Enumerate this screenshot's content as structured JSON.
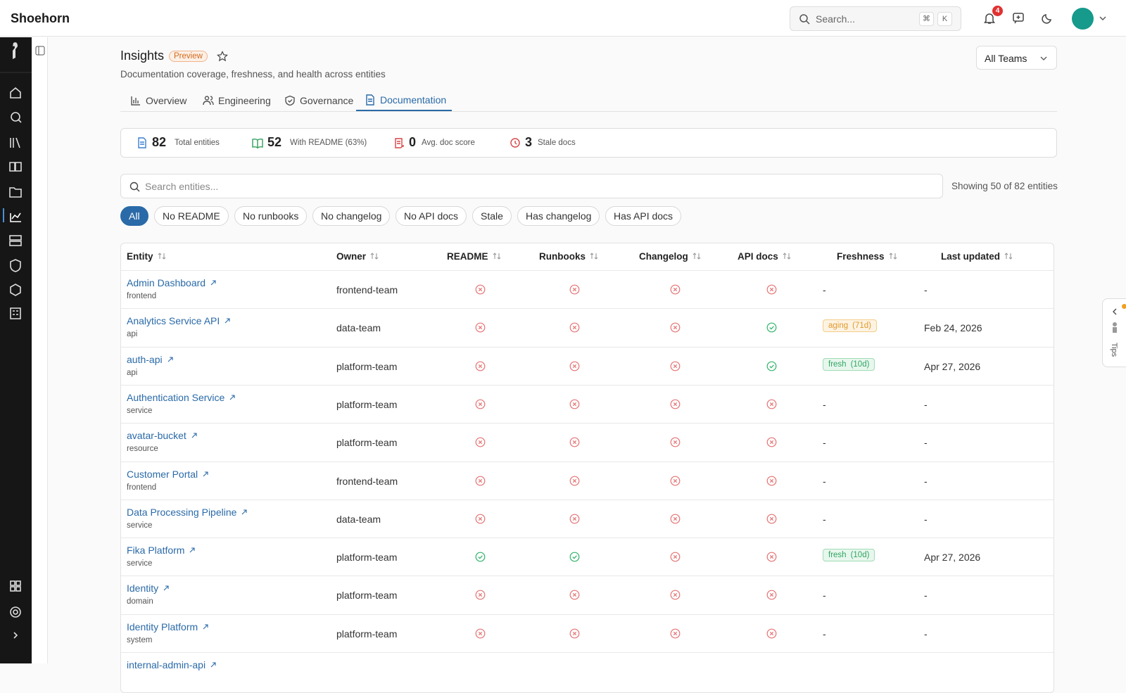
{
  "header": {
    "brand": "Shoehorn",
    "search_placeholder": "Search...",
    "shortcut": [
      "⌘",
      "K"
    ],
    "notification_count": "4"
  },
  "page": {
    "title": "Insights",
    "badge": "Preview",
    "subtitle": "Documentation coverage, freshness, and health across entities",
    "team_select": "All Teams"
  },
  "tabs": [
    {
      "label": "Overview",
      "active": false
    },
    {
      "label": "Engineering",
      "active": false
    },
    {
      "label": "Governance",
      "active": false
    },
    {
      "label": "Documentation",
      "active": true
    }
  ],
  "stats": [
    {
      "value": "82",
      "label": "Total entities"
    },
    {
      "value": "52",
      "label": "With README (63%)"
    },
    {
      "value": "0",
      "label": "Avg. doc score"
    },
    {
      "value": "3",
      "label": "Stale docs"
    }
  ],
  "search": {
    "placeholder": "Search entities...",
    "count_text": "Showing 50 of 82 entities"
  },
  "filters": [
    "All",
    "No README",
    "No runbooks",
    "No changelog",
    "No API docs",
    "Stale",
    "Has changelog",
    "Has API docs"
  ],
  "table": {
    "columns": [
      "Entity",
      "Owner",
      "README",
      "Runbooks",
      "Changelog",
      "API docs",
      "Freshness",
      "Last updated"
    ],
    "rows": [
      {
        "entity": "Admin Dashboard",
        "kind": "frontend",
        "owner": "frontend-team",
        "readme": false,
        "runbooks": false,
        "changelog": false,
        "api_docs": false,
        "freshness": "-",
        "last_updated": "-"
      },
      {
        "entity": "Analytics Service API",
        "kind": "api",
        "owner": "data-team",
        "readme": false,
        "runbooks": false,
        "changelog": false,
        "api_docs": true,
        "freshness": {
          "status": "aging",
          "age": "(71d)"
        },
        "last_updated": "Feb 24, 2026"
      },
      {
        "entity": "auth-api",
        "kind": "api",
        "owner": "platform-team",
        "readme": false,
        "runbooks": false,
        "changelog": false,
        "api_docs": true,
        "freshness": {
          "status": "fresh",
          "age": "(10d)"
        },
        "last_updated": "Apr 27, 2026"
      },
      {
        "entity": "Authentication Service",
        "kind": "service",
        "owner": "platform-team",
        "readme": false,
        "runbooks": false,
        "changelog": false,
        "api_docs": false,
        "freshness": "-",
        "last_updated": "-"
      },
      {
        "entity": "avatar-bucket",
        "kind": "resource",
        "owner": "platform-team",
        "readme": false,
        "runbooks": false,
        "changelog": false,
        "api_docs": false,
        "freshness": "-",
        "last_updated": "-"
      },
      {
        "entity": "Customer Portal",
        "kind": "frontend",
        "owner": "frontend-team",
        "readme": false,
        "runbooks": false,
        "changelog": false,
        "api_docs": false,
        "freshness": "-",
        "last_updated": "-"
      },
      {
        "entity": "Data Processing Pipeline",
        "kind": "service",
        "owner": "data-team",
        "readme": false,
        "runbooks": false,
        "changelog": false,
        "api_docs": false,
        "freshness": "-",
        "last_updated": "-"
      },
      {
        "entity": "Fika Platform",
        "kind": "service",
        "owner": "platform-team",
        "readme": true,
        "runbooks": true,
        "changelog": false,
        "api_docs": false,
        "freshness": {
          "status": "fresh",
          "age": "(10d)"
        },
        "last_updated": "Apr 27, 2026"
      },
      {
        "entity": "Identity",
        "kind": "domain",
        "owner": "platform-team",
        "readme": false,
        "runbooks": false,
        "changelog": false,
        "api_docs": false,
        "freshness": "-",
        "last_updated": "-"
      },
      {
        "entity": "Identity Platform",
        "kind": "system",
        "owner": "platform-team",
        "readme": false,
        "runbooks": false,
        "changelog": false,
        "api_docs": false,
        "freshness": "-",
        "last_updated": "-"
      },
      {
        "entity": "internal-admin-api"
      }
    ]
  },
  "tips": "Tips"
}
